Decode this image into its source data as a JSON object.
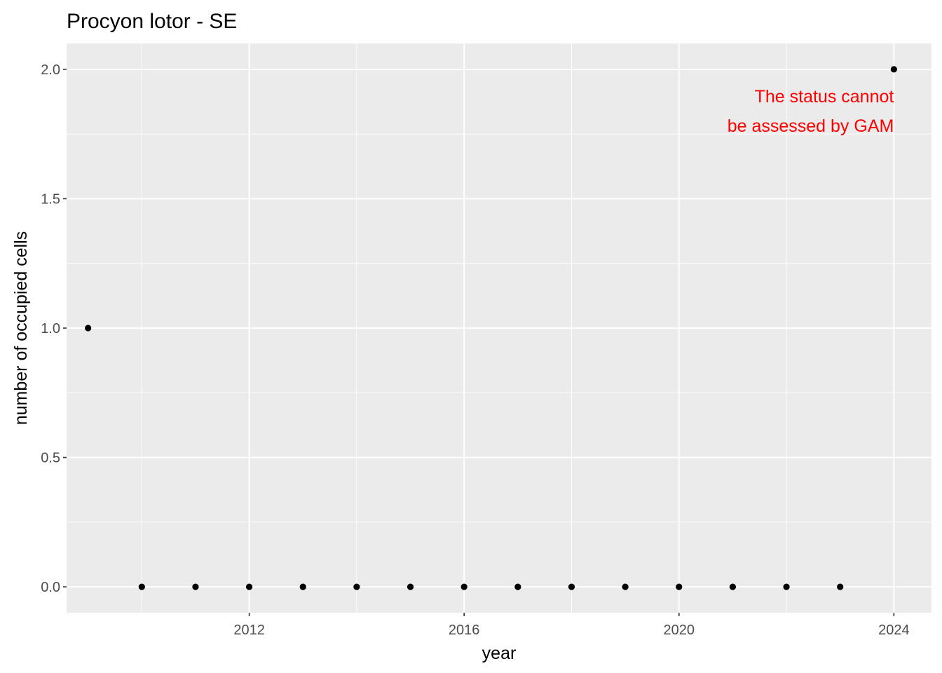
{
  "chart_data": {
    "type": "scatter",
    "title": "Procyon lotor - SE",
    "xlabel": "year",
    "ylabel": "number of occupied cells",
    "xlim": [
      2008.6,
      2024.7
    ],
    "ylim": [
      -0.1,
      2.1
    ],
    "x_ticks": [
      2012,
      2016,
      2020,
      2024
    ],
    "x_minor_ticks": [
      2010,
      2014,
      2018,
      2022
    ],
    "y_ticks": [
      "0.0",
      "0.5",
      "1.0",
      "1.5",
      "2.0"
    ],
    "y_minor_ticks": [
      0.25,
      0.75,
      1.25,
      1.75
    ],
    "grid": true,
    "legend": "none",
    "points": {
      "x": [
        2009,
        2010,
        2011,
        2012,
        2013,
        2014,
        2015,
        2016,
        2017,
        2018,
        2019,
        2020,
        2021,
        2022,
        2023,
        2024
      ],
      "y": [
        1,
        0,
        0,
        0,
        0,
        0,
        0,
        0,
        0,
        0,
        0,
        0,
        0,
        0,
        0,
        2
      ]
    },
    "annotation": {
      "lines": [
        "The status cannot",
        "be assessed by GAM"
      ],
      "color": "#ff0000",
      "x": 2024,
      "y": 1.84
    },
    "colors": {
      "panel_background": "#ebebeb",
      "grid": "#ffffff",
      "point": "#000000"
    }
  }
}
